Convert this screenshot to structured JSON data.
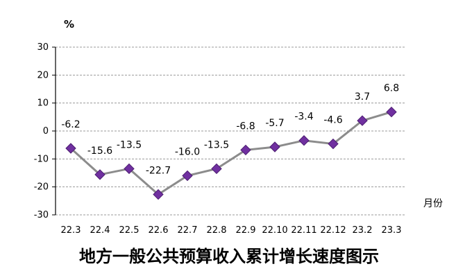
{
  "chart_data": {
    "type": "line",
    "title": "地方一般公共预算收入累计增长速度图示",
    "ylabel": "%",
    "xlabel": "月份",
    "ylim": [
      -30,
      30
    ],
    "yticks": [
      30,
      20,
      10,
      0,
      -10,
      -20,
      -30
    ],
    "grid": true,
    "categories": [
      "22.3",
      "22.4",
      "22.5",
      "22.6",
      "22.7",
      "22.8",
      "22.9",
      "22.10",
      "22.11",
      "22.12",
      "23.2",
      "23.3"
    ],
    "values": [
      -6.2,
      -15.6,
      -13.5,
      -22.7,
      -16.0,
      -13.5,
      -6.8,
      -5.7,
      -3.4,
      -4.6,
      3.7,
      6.8
    ],
    "data_labels": [
      "-6.2",
      "-15.6",
      "-13.5",
      "-22.7",
      "-16.0",
      "-13.5",
      "-6.8",
      "-5.7",
      "-3.4",
      "-4.6",
      "3.7",
      "6.8"
    ],
    "colors": {
      "line": "#8c8c8c",
      "marker": "#7030a0",
      "marker_edge": "#4b1c70",
      "grid": "#999999"
    }
  }
}
